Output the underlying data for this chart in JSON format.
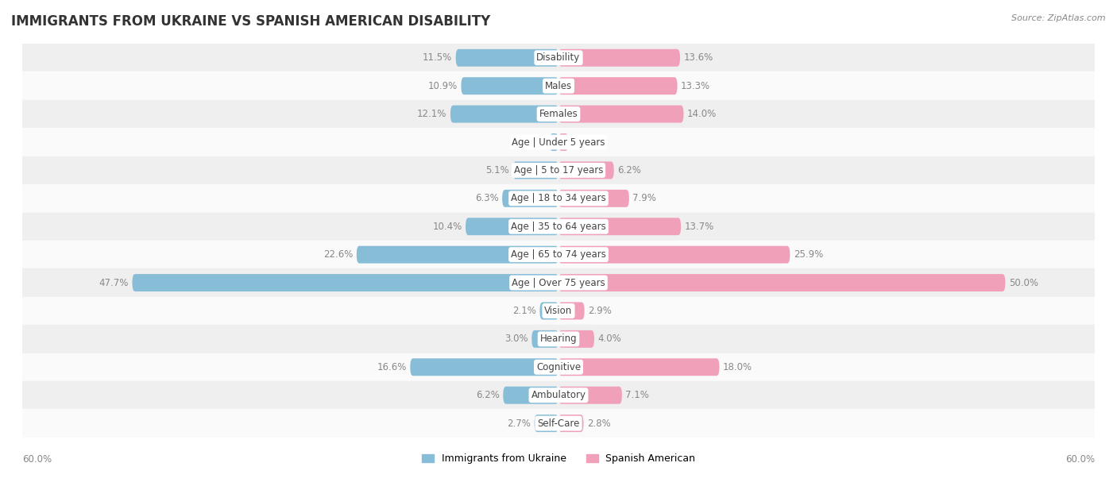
{
  "title": "IMMIGRANTS FROM UKRAINE VS SPANISH AMERICAN DISABILITY",
  "source": "Source: ZipAtlas.com",
  "categories": [
    "Disability",
    "Males",
    "Females",
    "Age | Under 5 years",
    "Age | 5 to 17 years",
    "Age | 18 to 34 years",
    "Age | 35 to 64 years",
    "Age | 65 to 74 years",
    "Age | Over 75 years",
    "Vision",
    "Hearing",
    "Cognitive",
    "Ambulatory",
    "Self-Care"
  ],
  "ukraine_values": [
    11.5,
    10.9,
    12.1,
    1.0,
    5.1,
    6.3,
    10.4,
    22.6,
    47.7,
    2.1,
    3.0,
    16.6,
    6.2,
    2.7
  ],
  "spanish_values": [
    13.6,
    13.3,
    14.0,
    1.1,
    6.2,
    7.9,
    13.7,
    25.9,
    50.0,
    2.9,
    4.0,
    18.0,
    7.1,
    2.8
  ],
  "ukraine_color": "#88bdd8",
  "spanish_color": "#f0a0b8",
  "ukraine_label": "Immigrants from Ukraine",
  "spanish_label": "Spanish American",
  "xlim": 60.0,
  "row_bg_odd": "#efefef",
  "row_bg_even": "#fafafa",
  "bar_height": 0.62,
  "label_fontsize": 8.5,
  "category_fontsize": 8.5,
  "title_fontsize": 12,
  "value_color": "#888888",
  "category_color": "#444444",
  "axis_label_fontsize": 8.5
}
